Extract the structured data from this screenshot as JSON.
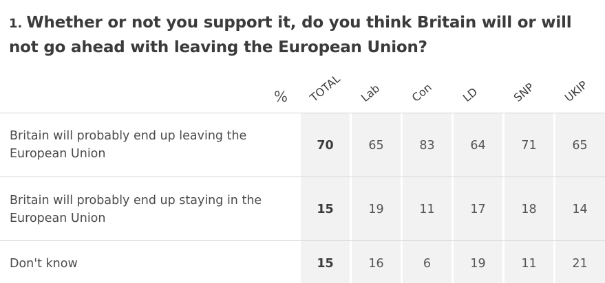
{
  "question": {
    "number": "1.",
    "text": "Whether or not you support it, do you think Britain will or will not go ahead with leaving the European Union?"
  },
  "table": {
    "unit_label": "%",
    "columns": [
      "TOTAL",
      "Lab",
      "Con",
      "LD",
      "SNP",
      "UKIP"
    ],
    "rows": [
      {
        "label": "Britain will probably end up leaving the European Union",
        "values": [
          "70",
          "65",
          "83",
          "64",
          "71",
          "65"
        ]
      },
      {
        "label": "Britain will probably end up staying in the European Union",
        "values": [
          "15",
          "19",
          "11",
          "17",
          "18",
          "14"
        ]
      },
      {
        "label": "Don't know",
        "values": [
          "15",
          "16",
          "6",
          "19",
          "11",
          "21"
        ]
      }
    ]
  },
  "chart_data": {
    "type": "table",
    "title": "Whether or not you support it, do you think Britain will or will not go ahead with leaving the European Union?",
    "unit": "%",
    "categories": [
      "Britain will probably end up leaving the European Union",
      "Britain will probably end up staying in the European Union",
      "Don't know"
    ],
    "series": [
      {
        "name": "TOTAL",
        "values": [
          70,
          15,
          15
        ]
      },
      {
        "name": "Lab",
        "values": [
          65,
          19,
          16
        ]
      },
      {
        "name": "Con",
        "values": [
          83,
          11,
          6
        ]
      },
      {
        "name": "LD",
        "values": [
          64,
          17,
          19
        ]
      },
      {
        "name": "SNP",
        "values": [
          71,
          18,
          11
        ]
      },
      {
        "name": "UKIP",
        "values": [
          65,
          14,
          21
        ]
      }
    ]
  }
}
